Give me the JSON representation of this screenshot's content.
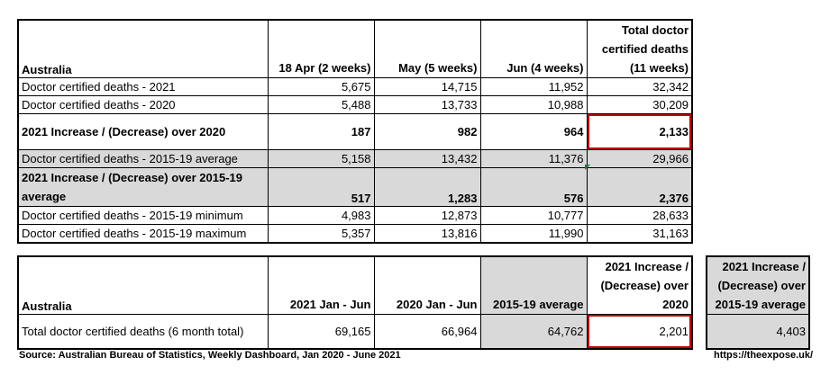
{
  "table1": {
    "headers": [
      "Australia",
      "18 Apr (2 weeks)",
      "May (5 weeks)",
      "Jun (4 weeks)",
      "Total doctor certified deaths (11 weeks)"
    ],
    "rows": [
      {
        "label": "Doctor certified deaths - 2021",
        "values": [
          "5,675",
          "14,715",
          "11,952",
          "32,342"
        ]
      },
      {
        "label": "Doctor certified deaths - 2020",
        "values": [
          "5,488",
          "13,733",
          "10,988",
          "30,209"
        ]
      },
      {
        "label": "2021 Increase / (Decrease) over 2020",
        "values": [
          "187",
          "982",
          "964",
          "2,133"
        ]
      },
      {
        "label": "Doctor certified deaths - 2015-19 average",
        "values": [
          "5,158",
          "13,432",
          "11,376",
          "29,966"
        ]
      },
      {
        "label": "2021 Increase / (Decrease) over 2015-19 average",
        "values": [
          "517",
          "1,283",
          "576",
          "2,376"
        ]
      },
      {
        "label": "Doctor certified deaths - 2015-19 minimum",
        "values": [
          "4,983",
          "12,873",
          "10,777",
          "28,633"
        ]
      },
      {
        "label": "Doctor certified deaths - 2015-19 maximum",
        "values": [
          "5,357",
          "13,816",
          "11,990",
          "31,163"
        ]
      }
    ]
  },
  "table2": {
    "headers": [
      "Australia",
      "2021 Jan - Jun",
      "2020 Jan - Jun",
      "2015-19 average",
      "2021 Increase / (Decrease) over 2020"
    ],
    "row": {
      "label": "Total doctor certified deaths (6 month total)",
      "values": [
        "69,165",
        "66,964",
        "64,762",
        "2,201"
      ]
    }
  },
  "table3": {
    "header": "2021 Increase / (Decrease) over 2015-19 average",
    "value": "4,403"
  },
  "footer": {
    "source": "Source: Australian Bureau of Statistics, Weekly Dashboard, Jan 2020 - June 2021",
    "url": "https://theexpose.uk/"
  },
  "colors": {
    "shade": "#d9d9d9",
    "highlight_border": "#c00000",
    "comment_marker": "#1e7b3b"
  }
}
